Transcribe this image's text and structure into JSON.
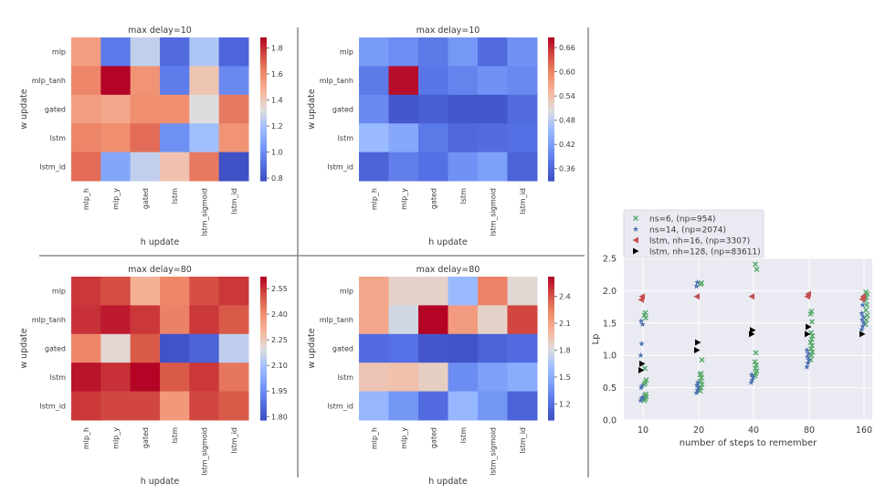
{
  "chart_data": [
    {
      "type": "heatmap",
      "title": "max delay=10",
      "xlabel": "h update",
      "ylabel": "w update",
      "x_categories": [
        "mlp_h",
        "mlp_y",
        "gated",
        "lstm",
        "lstm_sigmoid",
        "lstm_id"
      ],
      "y_categories": [
        "mlp",
        "mlp_tanh",
        "gated",
        "lstm",
        "lstm_id"
      ],
      "colormap": "coolwarm",
      "vmin": 0.78,
      "vmax": 1.88,
      "colorbar_ticks": [
        0.8,
        1.0,
        1.2,
        1.4,
        1.6,
        1.8
      ],
      "values": [
        [
          1.55,
          0.95,
          1.27,
          0.9,
          1.23,
          0.88
        ],
        [
          1.62,
          1.88,
          1.58,
          0.96,
          1.42,
          1.0
        ],
        [
          1.55,
          1.52,
          1.6,
          1.6,
          1.33,
          1.65
        ],
        [
          1.62,
          1.6,
          1.68,
          1.02,
          1.2,
          1.58
        ],
        [
          1.68,
          1.1,
          1.27,
          1.43,
          1.65,
          0.8
        ]
      ]
    },
    {
      "type": "heatmap",
      "title": "max delay=10",
      "xlabel": "h update",
      "ylabel": "w update",
      "x_categories": [
        "mlp_h",
        "mlp_y",
        "gated",
        "lstm",
        "lstm_sigmoid",
        "lstm_id"
      ],
      "y_categories": [
        "mlp",
        "mlp_tanh",
        "gated",
        "lstm",
        "lstm_id"
      ],
      "colormap": "coolwarm",
      "vmin": 0.33,
      "vmax": 0.685,
      "colorbar_ticks": [
        0.36,
        0.42,
        0.48,
        0.54,
        0.6,
        0.66
      ],
      "values": [
        [
          0.42,
          0.405,
          0.385,
          0.415,
          0.37,
          0.41
        ],
        [
          0.385,
          0.68,
          0.38,
          0.395,
          0.41,
          0.4
        ],
        [
          0.4,
          0.345,
          0.355,
          0.345,
          0.345,
          0.37
        ],
        [
          0.46,
          0.435,
          0.385,
          0.365,
          0.37,
          0.375
        ],
        [
          0.36,
          0.39,
          0.375,
          0.41,
          0.425,
          0.36
        ]
      ]
    },
    {
      "type": "heatmap",
      "title": "max delay=80",
      "xlabel": "h update",
      "ylabel": "w update",
      "x_categories": [
        "mlp_h",
        "mlp_y",
        "gated",
        "lstm",
        "lstm_sigmoid",
        "lstm_id"
      ],
      "y_categories": [
        "mlp",
        "mlp_tanh",
        "gated",
        "lstm",
        "lstm_id"
      ],
      "colormap": "coolwarm",
      "vmin": 1.78,
      "vmax": 2.62,
      "colorbar_ticks": [
        1.8,
        1.95,
        2.1,
        2.25,
        2.4,
        2.55
      ],
      "values": [
        [
          2.55,
          2.52,
          2.32,
          2.42,
          2.52,
          2.55
        ],
        [
          2.56,
          2.59,
          2.55,
          2.43,
          2.55,
          2.5
        ],
        [
          2.42,
          2.22,
          2.5,
          1.8,
          1.85,
          2.15
        ],
        [
          2.6,
          2.56,
          2.62,
          2.5,
          2.55,
          2.45
        ],
        [
          2.55,
          2.53,
          2.53,
          2.38,
          2.53,
          2.5
        ]
      ]
    },
    {
      "type": "heatmap",
      "title": "max delay=80",
      "xlabel": "h update",
      "ylabel": "w update",
      "x_categories": [
        "mlp_h",
        "mlp_y",
        "gated",
        "lstm",
        "lstm_sigmoid",
        "lstm_id"
      ],
      "y_categories": [
        "mlp",
        "mlp_tanh",
        "gated",
        "lstm",
        "lstm_id"
      ],
      "colormap": "coolwarm",
      "vmin": 1.02,
      "vmax": 2.62,
      "colorbar_ticks": [
        1.2,
        1.5,
        1.8,
        2.1,
        2.4
      ],
      "values": [
        [
          2.1,
          1.88,
          1.88,
          1.6,
          2.25,
          1.85
        ],
        [
          2.1,
          1.78,
          2.62,
          2.15,
          1.88,
          2.45
        ],
        [
          1.2,
          1.23,
          1.08,
          1.06,
          1.15,
          1.2
        ],
        [
          1.95,
          1.97,
          1.9,
          1.35,
          1.45,
          1.52
        ],
        [
          1.58,
          1.4,
          1.2,
          1.58,
          1.4,
          1.15
        ]
      ]
    },
    {
      "type": "scatter",
      "title": "",
      "xlabel": "number of steps to remember",
      "ylabel": "Lp",
      "x_categories": [
        "10",
        "20",
        "40",
        "80",
        "160"
      ],
      "ylim": [
        0.0,
        2.5
      ],
      "y_ticks": [
        0.0,
        0.5,
        1.0,
        1.5,
        2.0,
        2.5
      ],
      "grid": true,
      "legend_position": "top-left (outside above axes)",
      "series": [
        {
          "name": "ns=6, (np=954)",
          "marker": "X",
          "color": "#55a868",
          "points": {
            "10": [
              0.3,
              0.33,
              0.36,
              0.38,
              0.4,
              0.55,
              0.58,
              0.62,
              0.8,
              1.58,
              1.62,
              1.66
            ],
            "20": [
              0.45,
              0.5,
              0.55,
              0.6,
              0.65,
              0.7,
              0.72,
              0.93,
              2.1,
              2.12
            ],
            "40": [
              0.68,
              0.72,
              0.76,
              0.8,
              0.85,
              0.9,
              1.04,
              2.33,
              2.41
            ],
            "80": [
              0.93,
              1.0,
              1.05,
              1.1,
              1.15,
              1.2,
              1.25,
              1.3,
              1.35,
              1.52,
              1.64,
              1.68
            ],
            "160": [
              1.48,
              1.55,
              1.62,
              1.7,
              1.78,
              1.85,
              1.9,
              1.95,
              1.98
            ]
          }
        },
        {
          "name": "ns=14, (np=2074)",
          "marker": "*",
          "color": "#4c72b0",
          "points": {
            "10": [
              0.3,
              0.33,
              0.35,
              0.5,
              0.53,
              1.0,
              1.18,
              1.48,
              1.53
            ],
            "20": [
              0.42,
              0.46,
              0.5,
              0.54,
              0.58,
              2.07,
              2.13
            ],
            "40": [
              0.58,
              0.62,
              0.66,
              0.7
            ],
            "80": [
              0.82,
              0.88,
              0.93,
              0.98,
              1.03,
              1.08
            ],
            "160": [
              1.4,
              1.45,
              1.5,
              1.55,
              1.6,
              1.65,
              1.78
            ]
          }
        },
        {
          "name": "lstm, nh=16, (np=3307)",
          "marker": "<",
          "color": "#c44e52",
          "points": {
            "10": [
              1.86,
              1.91
            ],
            "20": [
              1.91
            ],
            "40": [
              1.91
            ],
            "80": [
              1.91,
              1.95
            ],
            "160": [
              1.87,
              1.91
            ]
          }
        },
        {
          "name": "lstm, nh=128, (np=83611)",
          "marker": ">",
          "color": "#000000",
          "points": {
            "10": [
              0.77,
              0.87
            ],
            "20": [
              1.08,
              1.2
            ],
            "40": [
              1.33,
              1.39
            ],
            "80": [
              1.33,
              1.44
            ],
            "160": [
              1.33
            ]
          }
        }
      ]
    }
  ]
}
